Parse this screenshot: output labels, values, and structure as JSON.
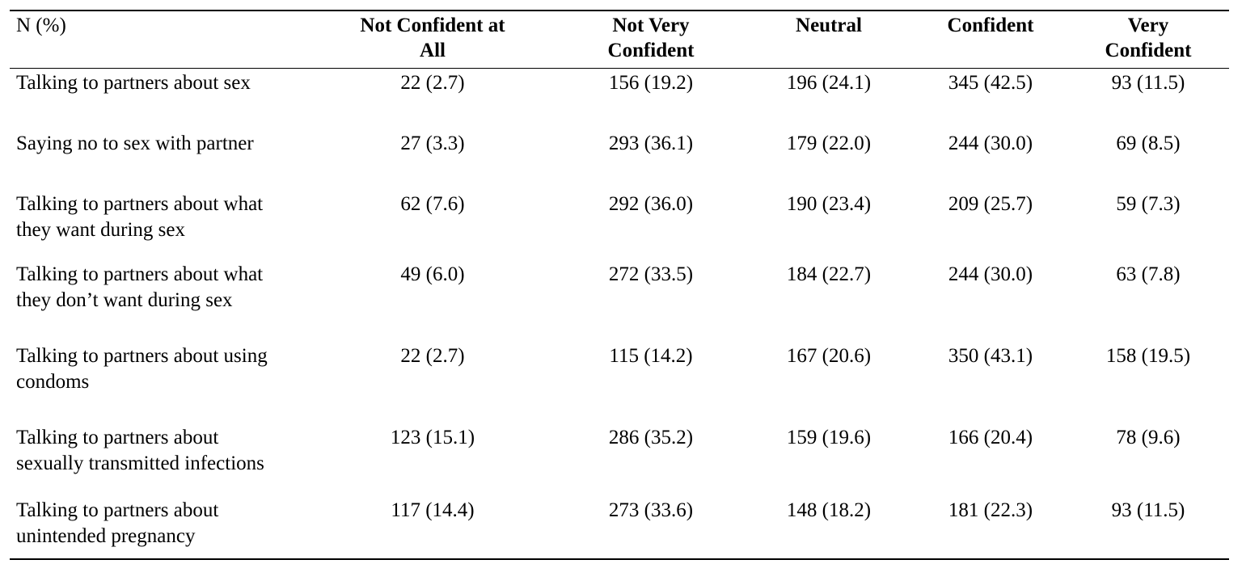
{
  "table": {
    "header": {
      "label": "N (%)",
      "columns": [
        "Not Confident at All",
        "Not Very Confident",
        "Neutral",
        "Confident",
        "Very Confident"
      ],
      "columns_lines": [
        [
          "Not Confident at",
          "All"
        ],
        [
          "Not Very",
          "Confident"
        ],
        [
          "Neutral"
        ],
        [
          "Confident"
        ],
        [
          "Very",
          "Confident"
        ]
      ]
    },
    "rows": [
      {
        "label_lines": [
          "Talking to partners about sex"
        ],
        "values": [
          "22 (2.7)",
          "156 (19.2)",
          "196 (24.1)",
          "345 (42.5)",
          "93 (11.5)"
        ]
      },
      {
        "label_lines": [
          "Saying no to sex with partner"
        ],
        "values": [
          "27 (3.3)",
          "293 (36.1)",
          "179 (22.0)",
          "244 (30.0)",
          "69 (8.5)"
        ]
      },
      {
        "label_lines": [
          "Talking to partners about what",
          "they want during sex"
        ],
        "values": [
          "62 (7.6)",
          "292 (36.0)",
          "190 (23.4)",
          "209 (25.7)",
          "59 (7.3)"
        ]
      },
      {
        "label_lines": [
          "Talking to partners about what",
          "they don’t want during sex"
        ],
        "values": [
          "49 (6.0)",
          "272 (33.5)",
          "184 (22.7)",
          "244 (30.0)",
          "63 (7.8)"
        ]
      },
      {
        "label_lines": [
          "Talking to partners about using",
          "condoms"
        ],
        "values": [
          "22 (2.7)",
          "115 (14.2)",
          "167 (20.6)",
          "350 (43.1)",
          "158 (19.5)"
        ]
      },
      {
        "label_lines": [
          "Talking to partners about",
          "sexually transmitted infections"
        ],
        "values": [
          "123 (15.1)",
          "286 (35.2)",
          "159 (19.6)",
          "166 (20.4)",
          "78 (9.6)"
        ]
      },
      {
        "label_lines": [
          "Talking to partners about",
          "unintended pregnancy"
        ],
        "values": [
          "117 (14.4)",
          "273 (33.6)",
          "148 (18.2)",
          "181 (22.3)",
          "93 (11.5)"
        ]
      }
    ]
  }
}
